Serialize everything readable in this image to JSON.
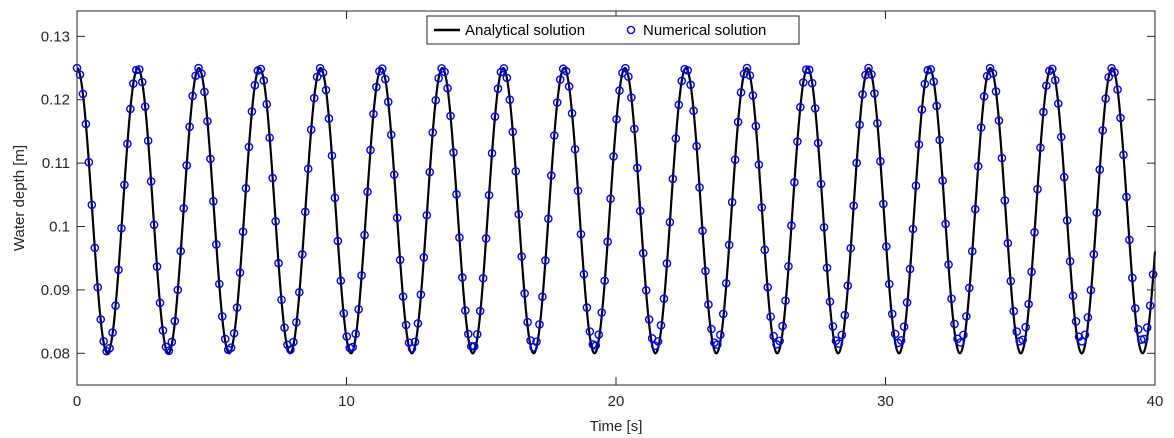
{
  "chart_data": {
    "type": "line",
    "title": "",
    "xlabel": "Time [s]",
    "ylabel": "Water depth [m]",
    "xlim": [
      0,
      40
    ],
    "ylim": [
      0.075,
      0.134
    ],
    "x_ticks": [
      0,
      10,
      20,
      30,
      40
    ],
    "x_tick_labels": [
      "0",
      "10",
      "20",
      "30",
      "40"
    ],
    "y_ticks": [
      0.08,
      0.09,
      0.1,
      0.11,
      0.12,
      0.13
    ],
    "y_tick_labels": [
      "0.08",
      "0.09",
      "0.1",
      "0.11",
      "0.12",
      "0.13"
    ],
    "grid": false,
    "legend_position": "top-center",
    "series": [
      {
        "name": "Analytical solution",
        "style": "solid-line",
        "color": "#000000",
        "model": {
          "mean": 0.1025,
          "amplitude": 0.0225,
          "period": 2.2594,
          "phase_at_t0": "maximum"
        },
        "x_range": [
          0,
          40
        ]
      },
      {
        "name": "Numerical solution",
        "style": "open-circle-markers",
        "color": "#0000ff",
        "model": {
          "mean": 0.1025,
          "amplitude": 0.0225,
          "period": 2.2594,
          "phase_at_t0": "maximum"
        },
        "x_range": [
          0,
          39.93
        ],
        "sample_interval": 0.11,
        "trough_min_early": 0.0802,
        "trough_min_late": 0.082
      }
    ]
  }
}
